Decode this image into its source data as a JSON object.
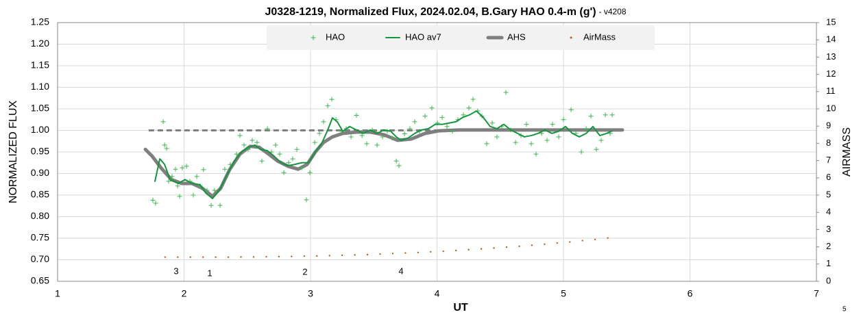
{
  "chart_data": {
    "type": "scatter",
    "title": "J0328-1219, Normalized Flux, 2024.02.04, B.Gary HAO 0.4-m (g')",
    "title_suffix": "- v4208",
    "x_label": "UT",
    "y_label": "NORMALIZED FLUX",
    "y2_label": "AIRMASS",
    "footer": "5",
    "annotations": [
      "3",
      "1",
      "2",
      "4"
    ],
    "xlim": [
      1,
      7
    ],
    "xticks": [
      1,
      2,
      3,
      4,
      5,
      6,
      7
    ],
    "ylim": [
      0.65,
      1.25
    ],
    "yticks": [
      {
        "value": 0.65,
        "label": "0.65"
      },
      {
        "value": 0.7,
        "label": "0.70"
      },
      {
        "value": 0.75,
        "label": "0.75"
      },
      {
        "value": 0.8,
        "label": "0.80"
      },
      {
        "value": 0.85,
        "label": "0.85"
      },
      {
        "value": 0.9,
        "label": "0.90"
      },
      {
        "value": 0.95,
        "label": "0.95"
      },
      {
        "value": 1.0,
        "label": "1.00"
      },
      {
        "value": 1.05,
        "label": "1.05"
      },
      {
        "value": 1.1,
        "label": "1.10"
      },
      {
        "value": 1.15,
        "label": "1.15"
      },
      {
        "value": 1.2,
        "label": "1.20"
      },
      {
        "value": 1.25,
        "label": "1.25"
      }
    ],
    "y2lim": [
      0,
      15
    ],
    "y2ticks": [
      0,
      1,
      2,
      3,
      4,
      5,
      6,
      7,
      8,
      9,
      10,
      11,
      12,
      13,
      14,
      15
    ],
    "grid": true,
    "legend": "top",
    "reference_line": {
      "value": 1.0,
      "x": [
        1.72,
        5.45
      ],
      "color": "#7f7f7f"
    },
    "series": [
      {
        "name": "HAO",
        "type": "scatter",
        "color": "#3cb44b",
        "x": [
          1.753,
          1.775,
          1.835,
          1.846,
          1.862,
          1.878,
          1.905,
          1.932,
          1.949,
          1.965,
          1.986,
          2.019,
          2.046,
          2.073,
          2.1,
          2.127,
          2.154,
          2.182,
          2.214,
          2.241,
          2.285,
          2.322,
          2.366,
          2.415,
          2.442,
          2.474,
          2.507,
          2.539,
          2.577,
          2.615,
          2.659,
          2.691,
          2.724,
          2.756,
          2.789,
          2.827,
          2.859,
          2.892,
          2.93,
          2.967,
          2.995,
          3.033,
          3.07,
          3.103,
          3.136,
          3.168,
          3.201,
          3.244,
          3.282,
          3.32,
          3.363,
          3.407,
          3.444,
          3.488,
          3.526,
          3.569,
          3.607,
          3.645,
          3.678,
          3.699,
          3.743,
          3.786,
          3.824,
          3.862,
          3.905,
          3.959,
          4.003,
          4.041,
          4.079,
          4.122,
          4.165,
          4.209,
          4.252,
          4.285,
          4.322,
          4.355,
          4.393,
          4.436,
          4.474,
          4.512,
          4.545,
          4.583,
          4.621,
          4.664,
          4.707,
          4.745,
          4.783,
          4.827,
          4.87,
          4.913,
          4.962,
          5.0,
          5.06,
          5.098,
          5.141,
          5.179,
          5.217,
          5.26,
          5.298,
          5.331,
          5.369,
          5.385
        ],
        "values": [
          0.838,
          0.831,
          1.02,
          0.966,
          0.958,
          0.882,
          0.893,
          0.91,
          0.871,
          0.847,
          0.913,
          0.917,
          0.882,
          0.85,
          0.893,
          0.871,
          0.909,
          0.861,
          0.826,
          0.861,
          0.826,
          0.91,
          0.921,
          0.945,
          0.988,
          0.966,
          0.956,
          0.977,
          0.972,
          0.929,
          1.004,
          0.95,
          0.966,
          0.945,
          0.902,
          0.925,
          0.934,
          0.956,
          0.913,
          0.839,
          0.902,
          0.972,
          0.993,
          1.02,
          1.057,
          1.072,
          1.025,
          0.998,
          1.004,
          0.985,
          1.035,
          0.988,
          0.969,
          1.001,
          0.966,
          0.985,
          0.998,
          0.982,
          0.929,
          0.918,
          0.992,
          1.004,
          1.02,
          0.998,
          1.033,
          1.052,
          1.017,
          1.03,
          1.009,
          0.998,
          1.025,
          1.036,
          1.052,
          1.072,
          1.045,
          1.033,
          0.969,
          1.017,
          0.985,
          1.009,
          1.088,
          1.001,
          0.972,
          0.988,
          1.014,
          0.969,
          0.945,
          0.993,
          0.977,
          1.014,
          0.985,
          1.025,
          1.048,
          0.993,
          0.95,
          1.004,
          1.033,
          0.956,
          0.977,
          1.036,
          0.993,
          1.036
        ]
      },
      {
        "name": "HAO av7",
        "type": "line",
        "color": "#13953d",
        "x": [
          1.77,
          1.808,
          1.846,
          1.889,
          1.954,
          2.008,
          2.062,
          2.127,
          2.171,
          2.225,
          2.279,
          2.333,
          2.398,
          2.453,
          2.507,
          2.561,
          2.604,
          2.659,
          2.713,
          2.767,
          2.821,
          2.875,
          2.93,
          2.984,
          3.038,
          3.092,
          3.136,
          3.173,
          3.211,
          3.255,
          3.309,
          3.363,
          3.417,
          3.472,
          3.526,
          3.58,
          3.634,
          3.678,
          3.716,
          3.77,
          3.824,
          3.878,
          3.932,
          3.986,
          4.041,
          4.095,
          4.149,
          4.203,
          4.257,
          4.312,
          4.366,
          4.42,
          4.474,
          4.528,
          4.583,
          4.637,
          4.691,
          4.745,
          4.799,
          4.854,
          4.908,
          4.962,
          5.016,
          5.07,
          5.125,
          5.179,
          5.233,
          5.287,
          5.341,
          5.379
        ],
        "values": [
          0.882,
          0.934,
          0.921,
          0.886,
          0.877,
          0.886,
          0.877,
          0.874,
          0.855,
          0.842,
          0.861,
          0.893,
          0.929,
          0.95,
          0.961,
          0.966,
          0.956,
          0.953,
          0.94,
          0.925,
          0.918,
          0.921,
          0.925,
          0.925,
          0.95,
          0.972,
          1.001,
          1.029,
          1.02,
          0.998,
          1.009,
          1.001,
          0.993,
          1.001,
          0.993,
          1.001,
          0.998,
          0.985,
          0.977,
          0.982,
          0.993,
          1.001,
          1.004,
          1.014,
          1.014,
          1.017,
          1.02,
          1.03,
          1.036,
          1.045,
          1.03,
          1.009,
          1.004,
          1.014,
          1.001,
          0.993,
          0.985,
          0.988,
          0.993,
          1.001,
          0.993,
          0.998,
          1.009,
          0.993,
          0.985,
          0.993,
          1.009,
          0.988,
          0.993,
          0.998
        ]
      },
      {
        "name": "AHS",
        "type": "line",
        "color": "#7f7f7f",
        "x": [
          1.694,
          1.748,
          1.818,
          1.9,
          1.981,
          2.062,
          2.144,
          2.225,
          2.29,
          2.36,
          2.442,
          2.523,
          2.593,
          2.669,
          2.74,
          2.821,
          2.902,
          2.973,
          3.038,
          3.103,
          3.173,
          3.255,
          3.363,
          3.472,
          3.58,
          3.688,
          3.797,
          3.905,
          4.014,
          4.176,
          4.339,
          4.61,
          4.881,
          5.152,
          5.466
        ],
        "values": [
          0.956,
          0.94,
          0.913,
          0.886,
          0.877,
          0.877,
          0.866,
          0.847,
          0.866,
          0.909,
          0.945,
          0.963,
          0.961,
          0.945,
          0.929,
          0.917,
          0.91,
          0.921,
          0.95,
          0.972,
          0.985,
          0.993,
          0.996,
          0.996,
          0.99,
          0.977,
          0.98,
          0.993,
          0.999,
          1.001,
          1.001,
          1.001,
          1.001,
          1.001,
          1.001
        ]
      },
      {
        "name": "AirMass",
        "type": "dots",
        "axis": "y2",
        "color": "#c55a11",
        "x": [
          1.85,
          1.95,
          2.05,
          2.15,
          2.25,
          2.35,
          2.45,
          2.55,
          2.65,
          2.75,
          2.85,
          2.95,
          3.05,
          3.15,
          3.25,
          3.35,
          3.45,
          3.55,
          3.65,
          3.75,
          3.85,
          3.95,
          4.05,
          4.15,
          4.25,
          4.35,
          4.45,
          4.55,
          4.65,
          4.75,
          4.85,
          4.95,
          5.05,
          5.15,
          5.25,
          5.35
        ],
        "values": [
          1.4,
          1.4,
          1.4,
          1.4,
          1.4,
          1.4,
          1.41,
          1.41,
          1.42,
          1.43,
          1.44,
          1.46,
          1.47,
          1.49,
          1.51,
          1.53,
          1.55,
          1.58,
          1.61,
          1.64,
          1.67,
          1.71,
          1.74,
          1.79,
          1.83,
          1.88,
          1.93,
          1.98,
          2.03,
          2.09,
          2.15,
          2.22,
          2.28,
          2.36,
          2.43,
          2.51
        ]
      }
    ]
  }
}
